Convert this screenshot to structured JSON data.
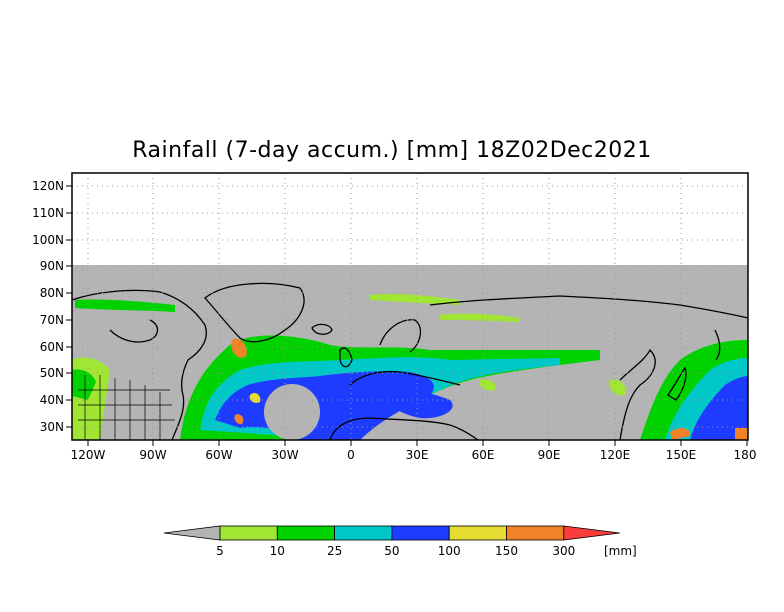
{
  "title": "Rainfall (7-day accum.) [mm] 18Z02Dec2021",
  "map": {
    "lat_ticks": [
      "120N",
      "110N",
      "100N",
      "90N",
      "80N",
      "70N",
      "60N",
      "50N",
      "40N",
      "30N"
    ],
    "lon_ticks": [
      "120W",
      "90W",
      "60W",
      "30W",
      "0",
      "30E",
      "60E",
      "90E",
      "120E",
      "150E",
      "180"
    ],
    "no_data_color": "#b4b4b4",
    "grid": true
  },
  "colorbar": {
    "values": [
      "5",
      "10",
      "25",
      "50",
      "100",
      "150",
      "300"
    ],
    "unit": "[mm]",
    "colors": [
      "#b4b4b4",
      "#a0e632",
      "#00d200",
      "#00c8c8",
      "#1e3cff",
      "#e6dc32",
      "#f08228",
      "#fa3c3c"
    ]
  }
}
